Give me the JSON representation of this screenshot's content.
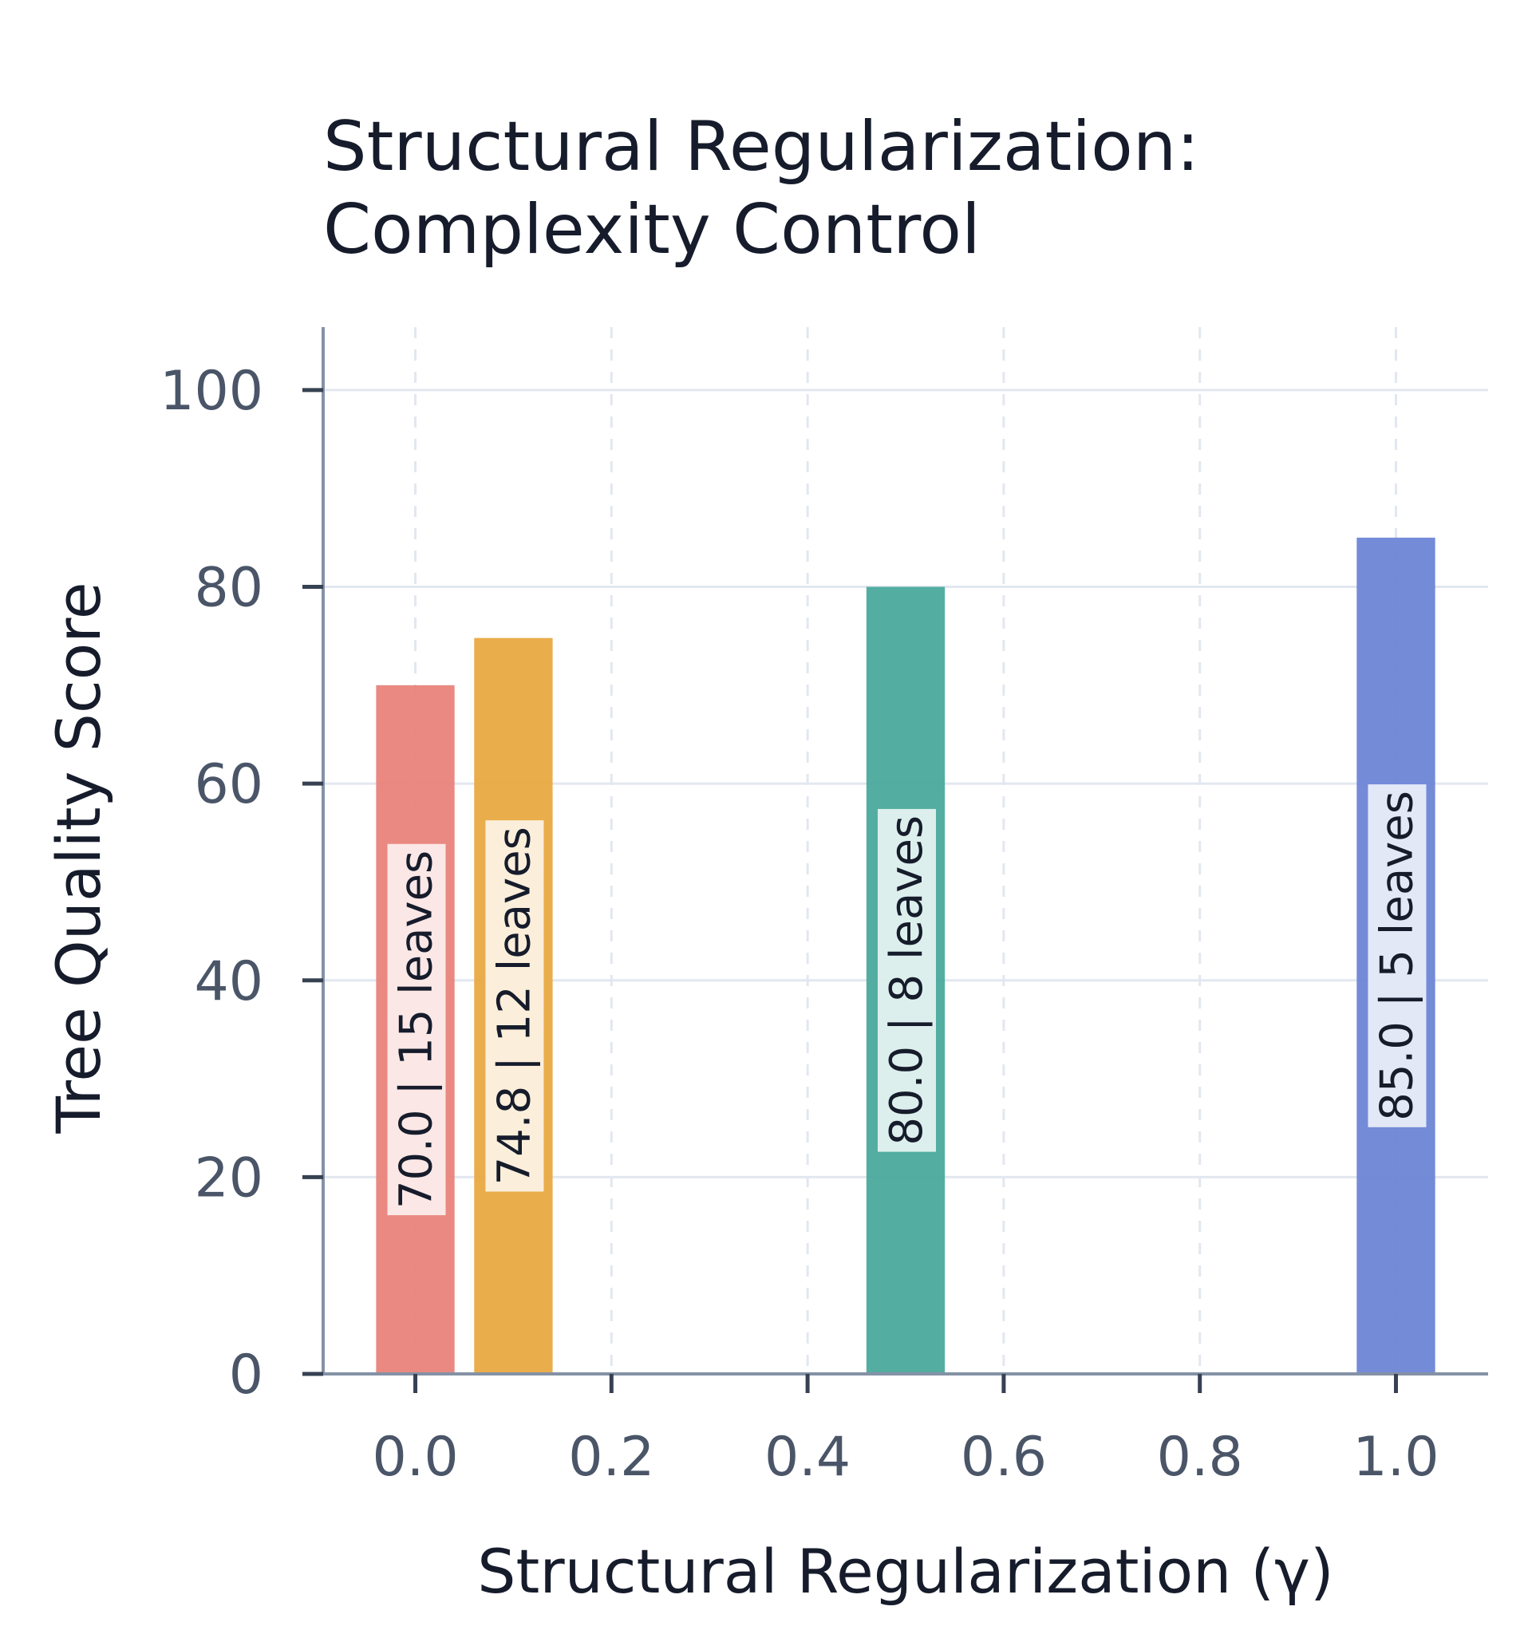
{
  "chart_data": {
    "type": "bar",
    "title": [
      "Structural Regularization:",
      "Complexity Control"
    ],
    "xlabel": "Structural Regularization (γ)",
    "ylabel": "Tree Quality Score",
    "xlim": [
      -0.094,
      1.094
    ],
    "ylim": [
      0,
      106.4
    ],
    "xticks": [
      0.0,
      0.2,
      0.4,
      0.6,
      0.8,
      1.0
    ],
    "xtick_labels": [
      "0.0",
      "0.2",
      "0.4",
      "0.6",
      "0.8",
      "1.0"
    ],
    "yticks": [
      0,
      20,
      40,
      60,
      80,
      100
    ],
    "ytick_labels": [
      "0",
      "20",
      "40",
      "60",
      "80",
      "100"
    ],
    "grid": true,
    "bars": [
      {
        "x": 0.0,
        "value": 70.0,
        "label": "70.0 | 15 leaves",
        "color": "#e8837a"
      },
      {
        "x": 0.1,
        "value": 74.8,
        "label": "74.8 | 12 leaves",
        "color": "#e9a941"
      },
      {
        "x": 0.5,
        "value": 80.0,
        "label": "80.0 | 8 leaves",
        "color": "#4aa99c"
      },
      {
        "x": 1.0,
        "value": 85.0,
        "label": "85.0 | 5 leaves",
        "color": "#6d85d6"
      }
    ],
    "bar_width": 0.08
  }
}
